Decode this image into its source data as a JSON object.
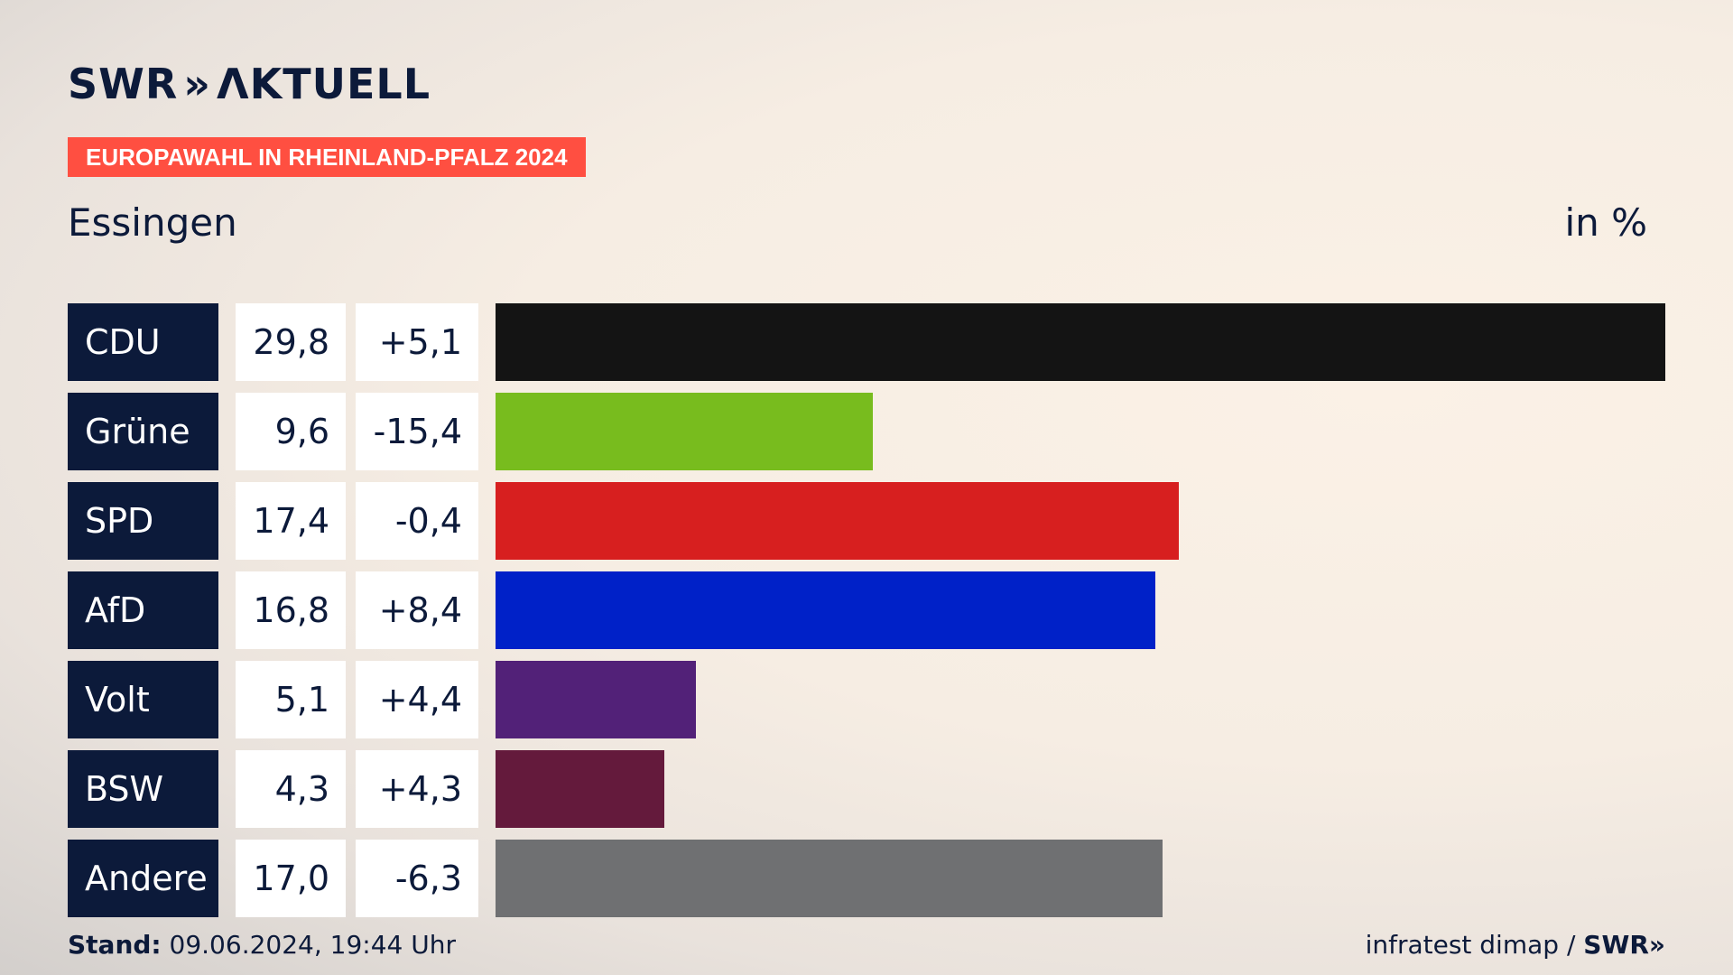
{
  "header": {
    "logo_swr": "SWR",
    "logo_chevrons": "»",
    "logo_aktuell": "ΛKTUELL",
    "badge": "EUROPAWAHL IN RHEINLAND-PFALZ 2024",
    "location": "Essingen",
    "unit": "in %"
  },
  "chart_data": {
    "type": "bar",
    "orientation": "horizontal",
    "categories": [
      "CDU",
      "Grüne",
      "SPD",
      "AfD",
      "Volt",
      "BSW",
      "Andere"
    ],
    "values": [
      29.8,
      9.6,
      17.4,
      16.8,
      5.1,
      4.3,
      17.0
    ],
    "value_labels": [
      "29,8",
      "9,6",
      "17,4",
      "16,8",
      "5,1",
      "4,3",
      "17,0"
    ],
    "diff_labels": [
      "+5,1",
      "-15,4",
      "-0,4",
      "+8,4",
      "+4,4",
      "+4,3",
      "-6,3"
    ],
    "colors": [
      "#141414",
      "#78bc1e",
      "#d71f1f",
      "#0021c8",
      "#522178",
      "#641a3c",
      "#6f7072"
    ],
    "xlim": [
      0,
      29.8
    ],
    "grid": false,
    "legend": "none"
  },
  "footer": {
    "stand_label": "Stand:",
    "stand_value": "09.06.2024, 19:44 Uhr",
    "source": "infratest dimap /",
    "source_logo": "SWR»"
  }
}
